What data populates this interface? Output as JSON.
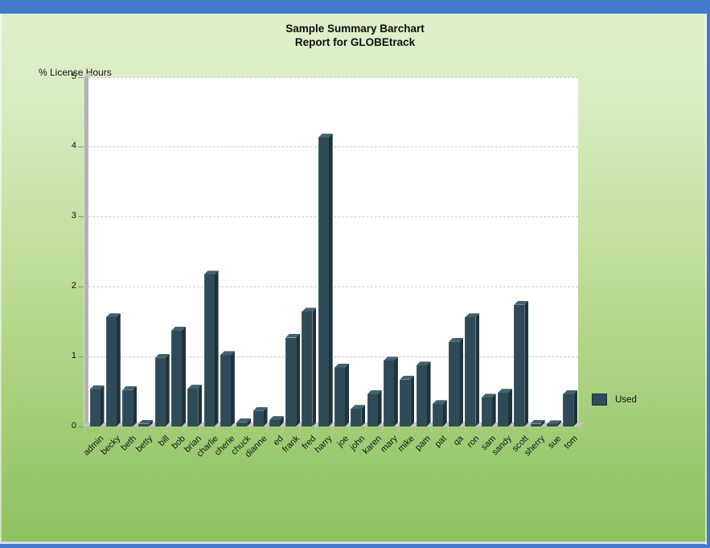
{
  "title": {
    "line1": "Sample Summary Barchart",
    "line2": "Report for GLOBEtrack"
  },
  "chart_data": {
    "type": "bar",
    "style": "3d-bars",
    "title": "Sample Summary Barchart",
    "subtitle": "Report for GLOBEtrack",
    "xlabel": "",
    "ylabel": "% License Hours",
    "ylim": [
      0,
      5
    ],
    "y_ticks": [
      0,
      1,
      2,
      3,
      4,
      5
    ],
    "grid": "horizontal-dashed",
    "legend_position": "right",
    "legend": [
      {
        "label": "Used",
        "color": "#2E4B57"
      }
    ],
    "categories": [
      "admin",
      "becky",
      "beth",
      "betty",
      "bill",
      "bob",
      "brian",
      "charlie",
      "cherie",
      "chuck",
      "dianne",
      "ed",
      "frank",
      "fred",
      "harry",
      "joe",
      "john",
      "karen",
      "mary",
      "mike",
      "pam",
      "pat",
      "qa",
      "ron",
      "sam",
      "sandy",
      "scott",
      "sherry",
      "sue",
      "tom"
    ],
    "series": [
      {
        "name": "Used",
        "values": [
          0.53,
          1.56,
          0.52,
          0.04,
          0.98,
          1.37,
          0.54,
          2.17,
          1.02,
          0.06,
          0.22,
          0.09,
          1.27,
          1.64,
          4.13,
          0.84,
          0.25,
          0.46,
          0.94,
          0.67,
          0.87,
          0.32,
          1.21,
          1.56,
          0.41,
          0.48,
          1.74,
          0.04,
          0.03,
          0.46
        ]
      }
    ],
    "colors": {
      "bar_front": "#2E4B57",
      "bar_top": "#41636F",
      "bar_side": "#1E333C",
      "bar_front_highlight": "#3E5E6A"
    }
  },
  "theme": {
    "accent_blue": "#4478CC",
    "background_top": "#E0F0CD",
    "background_bottom": "#8CC05E",
    "plot_background": "#FFFFFF",
    "grid_color": "#CBCBCB",
    "wall_color": "#B3B3B3"
  }
}
